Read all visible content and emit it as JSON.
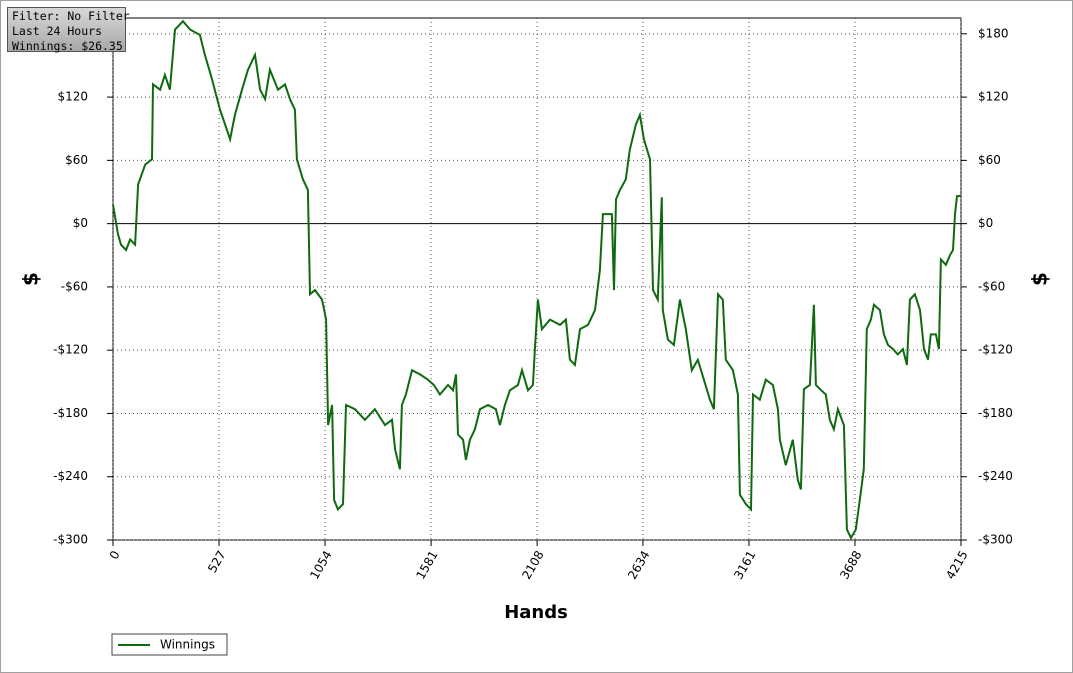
{
  "info_box": {
    "lines": [
      "Filter: No Filter",
      "Last 24 Hours",
      "Winnings: $26.35"
    ]
  },
  "chart_data": {
    "type": "line",
    "xlabel": "Hands",
    "ylabel": "$",
    "xlim": [
      0,
      4215
    ],
    "xticks": [
      0,
      527,
      1054,
      1581,
      2108,
      2634,
      3161,
      3688,
      4215
    ],
    "ylim": [
      -300,
      195
    ],
    "yticks": [
      {
        "value": -300,
        "label": "-$300"
      },
      {
        "value": -240,
        "label": "-$240"
      },
      {
        "value": -180,
        "label": "-$180"
      },
      {
        "value": -120,
        "label": "-$120"
      },
      {
        "value": -60,
        "label": "-$60"
      },
      {
        "value": 0,
        "label": "$0"
      },
      {
        "value": 60,
        "label": "$60"
      },
      {
        "value": 120,
        "label": "$120"
      },
      {
        "value": 180,
        "label": "$180"
      }
    ],
    "grid": true,
    "legend": "bottom-left",
    "x": [
      0,
      25,
      40,
      65,
      85,
      110,
      125,
      160,
      194,
      199,
      234,
      258,
      283,
      308,
      348,
      383,
      432,
      457,
      492,
      532,
      557,
      582,
      606,
      641,
      671,
      706,
      731,
      756,
      780,
      820,
      855,
      880,
      904,
      914,
      944,
      969,
      979,
      1004,
      1039,
      1059,
      1069,
      1089,
      1099,
      1118,
      1143,
      1158,
      1203,
      1252,
      1302,
      1352,
      1387,
      1402,
      1426,
      1436,
      1456,
      1486,
      1526,
      1565,
      1595,
      1625,
      1665,
      1690,
      1705,
      1715,
      1740,
      1754,
      1774,
      1799,
      1824,
      1864,
      1903,
      1923,
      1948,
      1973,
      2013,
      2033,
      2063,
      2087,
      2097,
      2112,
      2132,
      2172,
      2222,
      2251,
      2271,
      2296,
      2321,
      2361,
      2396,
      2420,
      2435,
      2460,
      2480,
      2490,
      2500,
      2520,
      2549,
      2569,
      2599,
      2619,
      2639,
      2669,
      2684,
      2708,
      2728,
      2733,
      2758,
      2788,
      2818,
      2847,
      2877,
      2907,
      2937,
      2967,
      2987,
      3007,
      3031,
      3046,
      3081,
      3106,
      3116,
      3146,
      3171,
      3181,
      3215,
      3245,
      3280,
      3305,
      3315,
      3344,
      3379,
      3404,
      3419,
      3434,
      3464,
      3484,
      3494,
      3514,
      3543,
      3563,
      3583,
      3603,
      3633,
      3648,
      3668,
      3692,
      3712,
      3732,
      3747,
      3767,
      3782,
      3812,
      3832,
      3852,
      3877,
      3901,
      3926,
      3946,
      3961,
      3986,
      4011,
      4031,
      4051,
      4065,
      4090,
      4105,
      4115,
      4140,
      4160,
      4175,
      4185,
      4195,
      4215
    ],
    "series": [
      {
        "name": "Winnings",
        "color": "#0f6a0f",
        "values": [
          18,
          -10,
          -20,
          -25,
          -15,
          -20,
          37,
          56,
          61,
          132,
          127,
          141,
          127,
          184,
          192,
          184,
          179,
          160,
          137,
          108,
          94,
          80,
          103,
          127,
          146,
          160,
          127,
          118,
          146,
          127,
          132,
          118,
          108,
          61,
          42,
          32,
          -67,
          -63,
          -72,
          -91,
          -191,
          -172,
          -262,
          -271,
          -266,
          -172,
          -176,
          -186,
          -176,
          -191,
          -186,
          -214,
          -233,
          -172,
          -162,
          -139,
          -143,
          -148,
          -153,
          -162,
          -153,
          -158,
          -143,
          -200,
          -205,
          -224,
          -205,
          -195,
          -176,
          -172,
          -176,
          -191,
          -172,
          -158,
          -153,
          -139,
          -158,
          -153,
          -119,
          -72,
          -100,
          -91,
          -96,
          -91,
          -129,
          -134,
          -100,
          -96,
          -82,
          -44,
          9,
          9,
          9,
          -63,
          23,
          32,
          42,
          70,
          94,
          103,
          80,
          61,
          -63,
          -72,
          25,
          -82,
          -110,
          -115,
          -72,
          -100,
          -139,
          -129,
          -148,
          -167,
          -176,
          -67,
          -72,
          -129,
          -139,
          -162,
          -257,
          -266,
          -271,
          -162,
          -167,
          -148,
          -153,
          -176,
          -205,
          -229,
          -205,
          -243,
          -252,
          -157,
          -153,
          -77,
          -153,
          -157,
          -162,
          -186,
          -195,
          -176,
          -191,
          -290,
          -298,
          -290,
          -262,
          -233,
          -100,
          -91,
          -77,
          -82,
          -105,
          -115,
          -119,
          -124,
          -119,
          -134,
          -72,
          -67,
          -82,
          -119,
          -129,
          -105,
          -105,
          -119,
          -34,
          -39,
          -30,
          -25,
          9,
          26,
          26.35
        ]
      }
    ]
  }
}
